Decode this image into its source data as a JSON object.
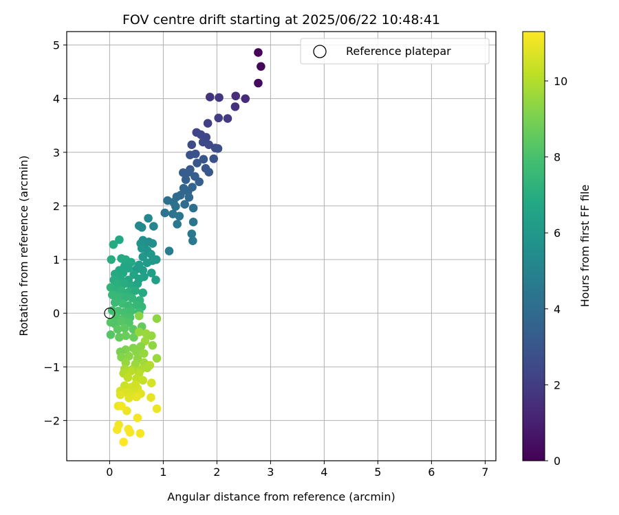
{
  "chart_data": {
    "type": "scatter",
    "title": "FOV centre drift starting at 2025/06/22 10:48:41",
    "xlabel": "Angular distance from reference (arcmin)",
    "ylabel": "Rotation from reference (arcmin)",
    "xlim": [
      -0.8,
      7.2
    ],
    "ylim": [
      -2.75,
      5.25
    ],
    "xticks": [
      0,
      1,
      2,
      3,
      4,
      5,
      6,
      7
    ],
    "yticks": [
      -2,
      -1,
      0,
      1,
      2,
      3,
      4,
      5
    ],
    "grid": true,
    "colormap": "viridis",
    "colorbar": {
      "label": "Hours from first FF file",
      "range": [
        0,
        11.3
      ],
      "ticks": [
        0,
        2,
        4,
        6,
        8,
        10
      ]
    },
    "legend": {
      "position": "top-right",
      "entries": [
        {
          "label": "Reference platepar",
          "marker": "open-circle"
        }
      ]
    },
    "reference_point": {
      "x": 0,
      "y": 0
    },
    "points": [
      [
        2.77,
        4.86,
        0.1
      ],
      [
        2.82,
        4.6,
        0.2
      ],
      [
        2.77,
        4.29,
        0.3
      ],
      [
        1.87,
        4.03,
        1.7
      ],
      [
        2.04,
        4.02,
        1.8
      ],
      [
        2.35,
        4.05,
        1.5
      ],
      [
        2.53,
        4.0,
        1.4
      ],
      [
        2.34,
        3.85,
        1.6
      ],
      [
        2.03,
        3.64,
        2.0
      ],
      [
        2.2,
        3.63,
        1.9
      ],
      [
        1.83,
        3.54,
        2.1
      ],
      [
        1.62,
        3.37,
        2.3
      ],
      [
        1.7,
        3.33,
        2.4
      ],
      [
        1.8,
        3.28,
        2.4
      ],
      [
        1.74,
        3.19,
        2.5
      ],
      [
        1.85,
        3.14,
        2.5
      ],
      [
        1.53,
        3.14,
        2.6
      ],
      [
        1.97,
        3.08,
        2.6
      ],
      [
        2.02,
        3.07,
        2.7
      ],
      [
        1.5,
        2.95,
        2.9
      ],
      [
        1.6,
        2.97,
        2.9
      ],
      [
        1.94,
        2.88,
        2.8
      ],
      [
        1.75,
        2.87,
        3.0
      ],
      [
        1.63,
        2.8,
        3.0
      ],
      [
        1.5,
        2.68,
        3.1
      ],
      [
        1.79,
        2.7,
        3.0
      ],
      [
        1.37,
        2.62,
        3.3
      ],
      [
        1.48,
        2.63,
        3.3
      ],
      [
        1.85,
        2.63,
        3.1
      ],
      [
        1.59,
        2.55,
        3.3
      ],
      [
        1.42,
        2.49,
        3.4
      ],
      [
        1.67,
        2.45,
        3.4
      ],
      [
        1.54,
        2.35,
        3.6
      ],
      [
        1.38,
        2.33,
        3.7
      ],
      [
        1.46,
        2.27,
        3.7
      ],
      [
        1.32,
        2.2,
        3.8
      ],
      [
        1.48,
        2.16,
        3.8
      ],
      [
        1.25,
        2.17,
        3.9
      ],
      [
        1.08,
        2.1,
        4.1
      ],
      [
        1.19,
        2.07,
        4.1
      ],
      [
        1.4,
        2.03,
        4.0
      ],
      [
        1.23,
        1.99,
        4.2
      ],
      [
        1.56,
        1.96,
        4.1
      ],
      [
        1.03,
        1.87,
        4.3
      ],
      [
        1.18,
        1.85,
        4.3
      ],
      [
        1.3,
        1.81,
        4.4
      ],
      [
        1.26,
        1.66,
        4.5
      ],
      [
        1.56,
        1.7,
        4.4
      ],
      [
        1.53,
        1.48,
        4.5
      ],
      [
        1.55,
        1.35,
        4.6
      ],
      [
        1.11,
        1.16,
        4.7
      ],
      [
        0.72,
        1.77,
        5.2
      ],
      [
        0.55,
        1.63,
        5.3
      ],
      [
        0.6,
        1.6,
        5.3
      ],
      [
        0.82,
        1.62,
        5.2
      ],
      [
        0.62,
        1.36,
        5.5
      ],
      [
        0.73,
        1.33,
        5.5
      ],
      [
        0.8,
        1.3,
        5.6
      ],
      [
        0.65,
        1.28,
        5.6
      ],
      [
        0.58,
        1.3,
        5.7
      ],
      [
        0.6,
        1.21,
        5.8
      ],
      [
        0.7,
        1.17,
        5.8
      ],
      [
        0.77,
        1.1,
        5.9
      ],
      [
        0.62,
        1.05,
        6.0
      ],
      [
        0.8,
        0.98,
        6.0
      ],
      [
        0.87,
        1.0,
        6.0
      ],
      [
        0.7,
        0.94,
        6.1
      ],
      [
        0.55,
        0.9,
        6.2
      ],
      [
        0.5,
        0.82,
        6.2
      ],
      [
        0.62,
        0.8,
        6.3
      ],
      [
        0.78,
        0.75,
        6.3
      ],
      [
        0.86,
        0.62,
        6.4
      ],
      [
        0.64,
        0.68,
        6.4
      ],
      [
        0.07,
        1.28,
        6.9
      ],
      [
        0.18,
        1.37,
        6.8
      ],
      [
        0.03,
        1.0,
        7.0
      ],
      [
        0.22,
        1.02,
        6.9
      ],
      [
        0.3,
        1.0,
        6.9
      ],
      [
        0.4,
        0.95,
        6.8
      ],
      [
        0.28,
        0.88,
        6.7
      ],
      [
        0.35,
        0.84,
        6.7
      ],
      [
        0.18,
        0.8,
        6.8
      ],
      [
        0.1,
        0.73,
        6.9
      ],
      [
        0.25,
        0.75,
        6.8
      ],
      [
        0.45,
        0.72,
        6.6
      ],
      [
        0.08,
        0.62,
        7.0
      ],
      [
        0.2,
        0.65,
        6.9
      ],
      [
        0.35,
        0.62,
        6.7
      ],
      [
        0.55,
        0.64,
        6.5
      ],
      [
        0.15,
        0.55,
        7.1
      ],
      [
        0.28,
        0.55,
        7.0
      ],
      [
        0.4,
        0.52,
        6.9
      ],
      [
        0.52,
        0.55,
        6.6
      ],
      [
        0.02,
        0.48,
        7.3
      ],
      [
        0.12,
        0.44,
        7.2
      ],
      [
        0.22,
        0.42,
        7.3
      ],
      [
        0.36,
        0.4,
        7.2
      ],
      [
        0.48,
        0.42,
        7.0
      ],
      [
        0.62,
        0.38,
        6.9
      ],
      [
        0.05,
        0.34,
        7.5
      ],
      [
        0.18,
        0.3,
        7.5
      ],
      [
        0.3,
        0.3,
        7.4
      ],
      [
        0.42,
        0.28,
        7.4
      ],
      [
        0.56,
        0.24,
        7.3
      ],
      [
        0.1,
        0.2,
        7.6
      ],
      [
        0.24,
        0.18,
        7.7
      ],
      [
        0.35,
        0.14,
        7.6
      ],
      [
        0.5,
        0.15,
        7.5
      ],
      [
        0.6,
        0.12,
        7.4
      ],
      [
        0.05,
        0.05,
        7.8
      ],
      [
        0.16,
        0.04,
        7.9
      ],
      [
        0.28,
        0.02,
        7.9
      ],
      [
        0.4,
        0.04,
        7.8
      ],
      [
        0.55,
        0.02,
        7.7
      ],
      [
        0.12,
        -0.08,
        8.1
      ],
      [
        0.25,
        -0.1,
        8.1
      ],
      [
        0.38,
        -0.08,
        8.0
      ],
      [
        0.02,
        -0.17,
        8.3
      ],
      [
        0.1,
        -0.2,
        8.2
      ],
      [
        0.22,
        -0.15,
        8.3
      ],
      [
        0.36,
        -0.18,
        8.2
      ],
      [
        0.02,
        -0.4,
        8.3
      ],
      [
        0.15,
        -0.3,
        8.4
      ],
      [
        0.28,
        -0.28,
        8.5
      ],
      [
        0.44,
        -0.3,
        8.4
      ],
      [
        0.6,
        -0.25,
        8.6
      ],
      [
        0.18,
        -0.45,
        8.6
      ],
      [
        0.3,
        -0.42,
        8.7
      ],
      [
        0.45,
        -0.45,
        8.7
      ],
      [
        0.55,
        -0.05,
        9.3
      ],
      [
        0.88,
        -0.1,
        9.4
      ],
      [
        0.55,
        -0.35,
        9.5
      ],
      [
        0.68,
        -0.38,
        9.6
      ],
      [
        0.78,
        -0.42,
        9.5
      ],
      [
        0.66,
        -0.52,
        9.6
      ],
      [
        0.8,
        -0.6,
        9.4
      ],
      [
        0.58,
        -0.62,
        9.3
      ],
      [
        0.44,
        -0.65,
        9.2
      ],
      [
        0.3,
        -0.68,
        9.1
      ],
      [
        0.2,
        -0.72,
        9.0
      ],
      [
        0.5,
        -0.72,
        9.3
      ],
      [
        0.64,
        -0.75,
        9.5
      ],
      [
        0.22,
        -0.82,
        9.2
      ],
      [
        0.36,
        -0.8,
        9.3
      ],
      [
        0.52,
        -0.85,
        9.4
      ],
      [
        0.88,
        -0.84,
        9.6
      ],
      [
        0.3,
        -0.92,
        9.5
      ],
      [
        0.48,
        -0.95,
        9.6
      ],
      [
        0.64,
        -0.92,
        9.7
      ],
      [
        0.75,
        -0.97,
        10.0
      ],
      [
        0.28,
        -1.04,
        9.8
      ],
      [
        0.42,
        -1.05,
        9.8
      ],
      [
        0.58,
        -1.05,
        9.9
      ],
      [
        0.7,
        -1.02,
        9.9
      ],
      [
        0.26,
        -1.12,
        10.0
      ],
      [
        0.4,
        -1.08,
        10.1
      ],
      [
        0.55,
        -1.12,
        10.1
      ],
      [
        0.34,
        -1.2,
        10.2
      ],
      [
        0.5,
        -1.22,
        10.2
      ],
      [
        0.62,
        -1.25,
        10.3
      ],
      [
        0.78,
        -1.3,
        10.6
      ],
      [
        0.28,
        -1.35,
        10.4
      ],
      [
        0.4,
        -1.38,
        10.5
      ],
      [
        0.52,
        -1.4,
        10.6
      ],
      [
        0.48,
        -1.33,
        10.5
      ],
      [
        0.2,
        -1.45,
        10.6
      ],
      [
        0.32,
        -1.48,
        10.7
      ],
      [
        0.44,
        -1.52,
        10.7
      ],
      [
        0.58,
        -1.5,
        10.8
      ],
      [
        0.2,
        -1.52,
        10.8
      ],
      [
        0.36,
        -1.58,
        10.8
      ],
      [
        0.5,
        -1.56,
        10.9
      ],
      [
        0.77,
        -1.57,
        10.9
      ],
      [
        0.16,
        -1.73,
        11.0
      ],
      [
        0.32,
        -1.82,
        11.0
      ],
      [
        0.88,
        -1.78,
        11.0
      ],
      [
        0.22,
        -1.73,
        11.1
      ],
      [
        0.52,
        -1.95,
        11.1
      ],
      [
        0.17,
        -2.08,
        11.1
      ],
      [
        0.14,
        -2.17,
        11.2
      ],
      [
        0.35,
        -2.16,
        11.2
      ],
      [
        0.38,
        -2.22,
        11.2
      ],
      [
        0.57,
        -2.24,
        11.2
      ],
      [
        0.26,
        -2.4,
        11.3
      ]
    ]
  }
}
